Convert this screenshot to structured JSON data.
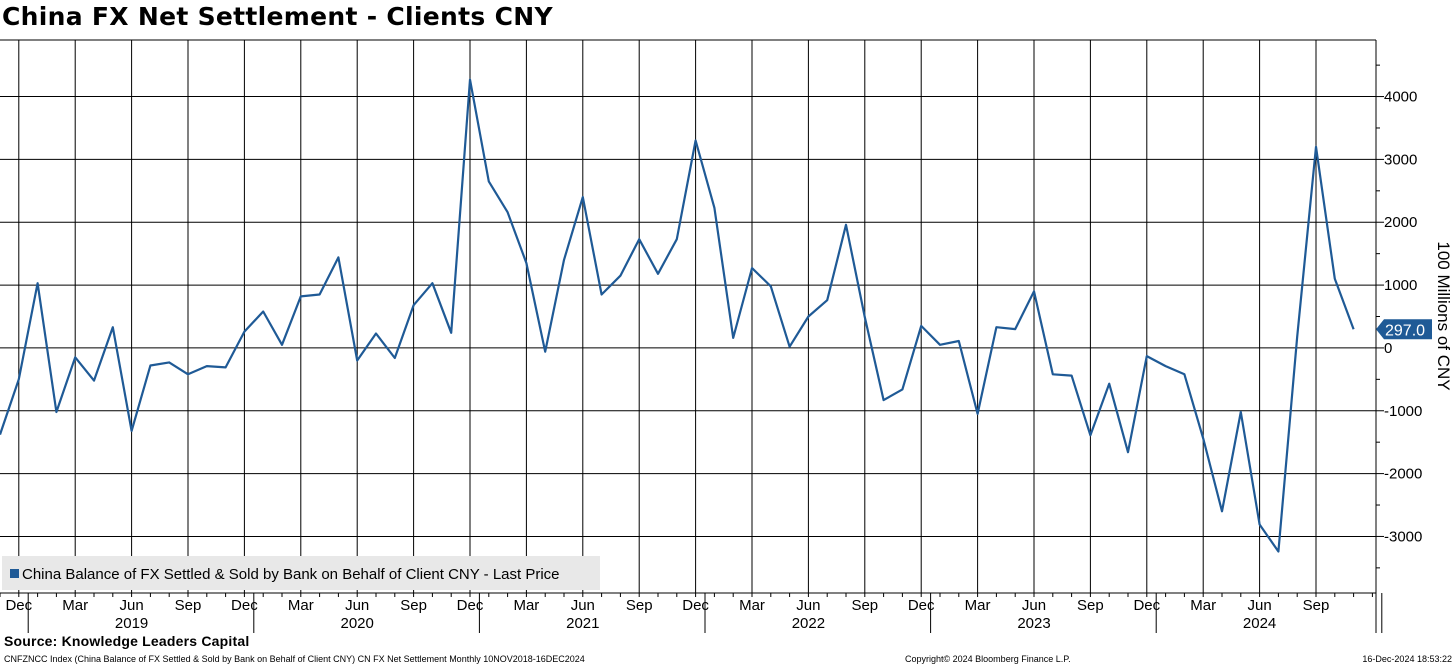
{
  "colors": {
    "series": "#1f5a96",
    "grid": "#000000",
    "legend_bg": "#e8e8e8",
    "background": "#ffffff"
  },
  "chart_data": {
    "type": "line",
    "title": "China FX Net Settlement - Clients CNY",
    "ylabel": "100 Millions of CNY",
    "xlabel": "",
    "ylim": [
      -3900,
      4900
    ],
    "yticks": [
      -3000,
      -2000,
      -1000,
      0,
      1000,
      2000,
      3000,
      4000
    ],
    "ytick_labels": [
      "-3000",
      "-2000",
      "-1000",
      "0",
      "1000",
      "2000",
      "3000",
      "4000"
    ],
    "xlim": [
      "2018-11",
      "2024-12"
    ],
    "xticks": [
      {
        "date": "2018-12",
        "label": "Dec"
      },
      {
        "date": "2019-03",
        "label": "Mar"
      },
      {
        "date": "2019-06",
        "label": "Jun"
      },
      {
        "date": "2019-09",
        "label": "Sep"
      },
      {
        "date": "2019-12",
        "label": "Dec"
      },
      {
        "date": "2020-03",
        "label": "Mar"
      },
      {
        "date": "2020-06",
        "label": "Jun"
      },
      {
        "date": "2020-09",
        "label": "Sep"
      },
      {
        "date": "2020-12",
        "label": "Dec"
      },
      {
        "date": "2021-03",
        "label": "Mar"
      },
      {
        "date": "2021-06",
        "label": "Jun"
      },
      {
        "date": "2021-09",
        "label": "Sep"
      },
      {
        "date": "2021-12",
        "label": "Dec"
      },
      {
        "date": "2022-03",
        "label": "Mar"
      },
      {
        "date": "2022-06",
        "label": "Jun"
      },
      {
        "date": "2022-09",
        "label": "Sep"
      },
      {
        "date": "2022-12",
        "label": "Dec"
      },
      {
        "date": "2023-03",
        "label": "Mar"
      },
      {
        "date": "2023-06",
        "label": "Jun"
      },
      {
        "date": "2023-09",
        "label": "Sep"
      },
      {
        "date": "2023-12",
        "label": "Dec"
      },
      {
        "date": "2024-03",
        "label": "Mar"
      },
      {
        "date": "2024-06",
        "label": "Jun"
      },
      {
        "date": "2024-09",
        "label": "Sep"
      }
    ],
    "year_labels": [
      {
        "date": "2019-06",
        "label": "2019"
      },
      {
        "date": "2020-06",
        "label": "2020"
      },
      {
        "date": "2021-06",
        "label": "2021"
      },
      {
        "date": "2022-06",
        "label": "2022"
      },
      {
        "date": "2023-06",
        "label": "2023"
      },
      {
        "date": "2024-06",
        "label": "2024"
      }
    ],
    "year_boundaries": [
      "2019-01",
      "2020-01",
      "2021-01",
      "2022-01",
      "2023-01",
      "2024-01",
      "2025-01"
    ],
    "grid": true,
    "legend_position": "bottom-left",
    "last_value_label": "297.0",
    "series": [
      {
        "name": "China Balance of FX Settled & Sold by Bank on Behalf of Client CNY - Last Price",
        "color": "#1f5a96",
        "points": [
          {
            "x": "2018-11",
            "y": -1380
          },
          {
            "x": "2018-12",
            "y": -500
          },
          {
            "x": "2019-01",
            "y": 1030
          },
          {
            "x": "2019-02",
            "y": -1020
          },
          {
            "x": "2019-03",
            "y": -150
          },
          {
            "x": "2019-04",
            "y": -520
          },
          {
            "x": "2019-05",
            "y": 330
          },
          {
            "x": "2019-06",
            "y": -1320
          },
          {
            "x": "2019-07",
            "y": -280
          },
          {
            "x": "2019-08",
            "y": -230
          },
          {
            "x": "2019-09",
            "y": -420
          },
          {
            "x": "2019-10",
            "y": -290
          },
          {
            "x": "2019-11",
            "y": -310
          },
          {
            "x": "2019-12",
            "y": 260
          },
          {
            "x": "2020-01",
            "y": 580
          },
          {
            "x": "2020-02",
            "y": 50
          },
          {
            "x": "2020-03",
            "y": 820
          },
          {
            "x": "2020-04",
            "y": 850
          },
          {
            "x": "2020-05",
            "y": 1440
          },
          {
            "x": "2020-06",
            "y": -200
          },
          {
            "x": "2020-07",
            "y": 230
          },
          {
            "x": "2020-08",
            "y": -160
          },
          {
            "x": "2020-09",
            "y": 680
          },
          {
            "x": "2020-10",
            "y": 1030
          },
          {
            "x": "2020-11",
            "y": 240
          },
          {
            "x": "2020-12",
            "y": 4270
          },
          {
            "x": "2021-01",
            "y": 2650
          },
          {
            "x": "2021-02",
            "y": 2160
          },
          {
            "x": "2021-03",
            "y": 1350
          },
          {
            "x": "2021-04",
            "y": -60
          },
          {
            "x": "2021-05",
            "y": 1400
          },
          {
            "x": "2021-06",
            "y": 2400
          },
          {
            "x": "2021-07",
            "y": 850
          },
          {
            "x": "2021-08",
            "y": 1150
          },
          {
            "x": "2021-09",
            "y": 1730
          },
          {
            "x": "2021-10",
            "y": 1180
          },
          {
            "x": "2021-11",
            "y": 1730
          },
          {
            "x": "2021-12",
            "y": 3300
          },
          {
            "x": "2022-01",
            "y": 2230
          },
          {
            "x": "2022-02",
            "y": 160
          },
          {
            "x": "2022-03",
            "y": 1270
          },
          {
            "x": "2022-04",
            "y": 980
          },
          {
            "x": "2022-05",
            "y": 20
          },
          {
            "x": "2022-06",
            "y": 500
          },
          {
            "x": "2022-07",
            "y": 760
          },
          {
            "x": "2022-08",
            "y": 1960
          },
          {
            "x": "2022-09",
            "y": 490
          },
          {
            "x": "2022-10",
            "y": -830
          },
          {
            "x": "2022-11",
            "y": -660
          },
          {
            "x": "2022-12",
            "y": 350
          },
          {
            "x": "2023-01",
            "y": 50
          },
          {
            "x": "2023-02",
            "y": 110
          },
          {
            "x": "2023-03",
            "y": -1050
          },
          {
            "x": "2023-04",
            "y": 330
          },
          {
            "x": "2023-05",
            "y": 300
          },
          {
            "x": "2023-06",
            "y": 900
          },
          {
            "x": "2023-07",
            "y": -420
          },
          {
            "x": "2023-08",
            "y": -440
          },
          {
            "x": "2023-09",
            "y": -1390
          },
          {
            "x": "2023-10",
            "y": -570
          },
          {
            "x": "2023-11",
            "y": -1660
          },
          {
            "x": "2023-12",
            "y": -130
          },
          {
            "x": "2024-01",
            "y": -290
          },
          {
            "x": "2024-02",
            "y": -420
          },
          {
            "x": "2024-03",
            "y": -1440
          },
          {
            "x": "2024-04",
            "y": -2600
          },
          {
            "x": "2024-05",
            "y": -1020
          },
          {
            "x": "2024-06",
            "y": -2810
          },
          {
            "x": "2024-07",
            "y": -3240
          },
          {
            "x": "2024-08",
            "y": 180
          },
          {
            "x": "2024-09",
            "y": 3200
          },
          {
            "x": "2024-10",
            "y": 1100
          },
          {
            "x": "2024-11",
            "y": 297
          }
        ]
      }
    ]
  },
  "footer": {
    "source": "Source: Knowledge Leaders Capital",
    "description": "CNFZNCC Index (China Balance of FX Settled & Sold by Bank on Behalf of Client CNY) CN FX Net Settlement  Monthly 10NOV2018-16DEC2024",
    "copyright": "Copyright© 2024 Bloomberg Finance L.P.",
    "timestamp": "16-Dec-2024 18:53:22"
  }
}
